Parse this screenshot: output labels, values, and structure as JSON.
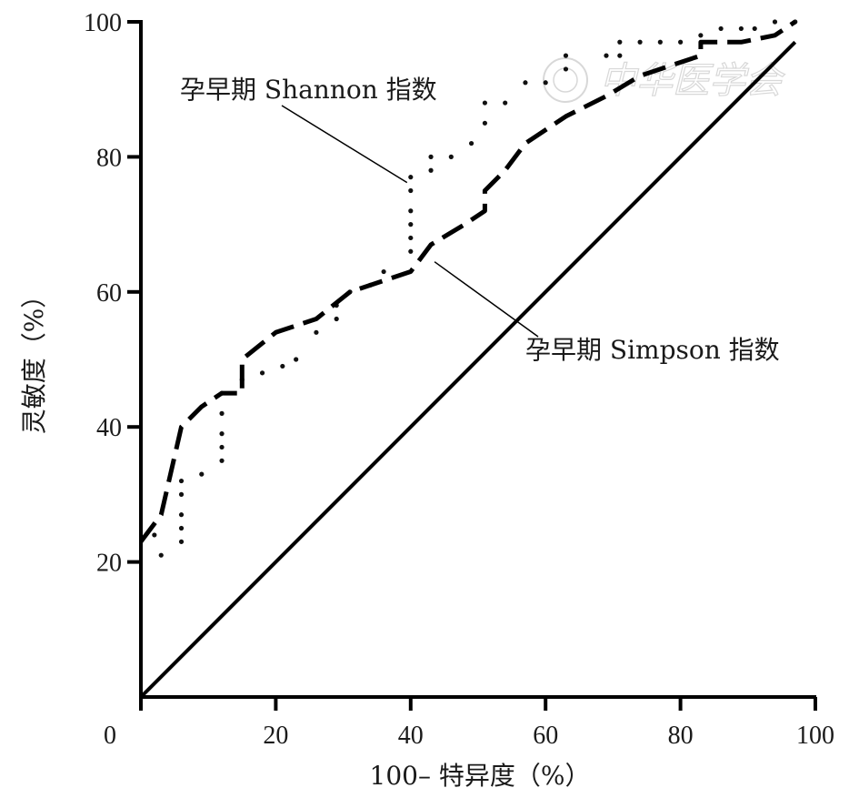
{
  "chart_data": {
    "type": "line",
    "title": "",
    "xlabel": "100– 特异度（%）",
    "ylabel": "灵敏度（%）",
    "xlim": [
      0,
      100
    ],
    "ylim": [
      0,
      100
    ],
    "x_ticks": [
      0,
      20,
      40,
      60,
      80,
      100
    ],
    "y_ticks": [
      20,
      40,
      60,
      80,
      100
    ],
    "x_tick_labels": [
      "0",
      "20",
      "40",
      "60",
      "80",
      "100"
    ],
    "y_tick_labels": [
      "20",
      "40",
      "60",
      "80",
      "100"
    ],
    "grid": false,
    "legend": "none",
    "series": [
      {
        "name": "孕早期 Shannon 指数",
        "style": "dotted",
        "points": [
          [
            2,
            24
          ],
          [
            3,
            21
          ],
          [
            6,
            23
          ],
          [
            6,
            25
          ],
          [
            6,
            27
          ],
          [
            6,
            30
          ],
          [
            6,
            32
          ],
          [
            9,
            33
          ],
          [
            12,
            35
          ],
          [
            12,
            37
          ],
          [
            12,
            39
          ],
          [
            12,
            42
          ],
          [
            12,
            45
          ],
          [
            15,
            47
          ],
          [
            18,
            48
          ],
          [
            21,
            49
          ],
          [
            23,
            50
          ],
          [
            26,
            54
          ],
          [
            29,
            56
          ],
          [
            29,
            58
          ],
          [
            31,
            60
          ],
          [
            34,
            61
          ],
          [
            36,
            63
          ],
          [
            40,
            66
          ],
          [
            40,
            68
          ],
          [
            40,
            70
          ],
          [
            40,
            72
          ],
          [
            40,
            75
          ],
          [
            40,
            77
          ],
          [
            43,
            78
          ],
          [
            43,
            80
          ],
          [
            46,
            80
          ],
          [
            49,
            82
          ],
          [
            51,
            85
          ],
          [
            51,
            88
          ],
          [
            54,
            88
          ],
          [
            57,
            91
          ],
          [
            60,
            91
          ],
          [
            63,
            93
          ],
          [
            63,
            95
          ],
          [
            69,
            95
          ],
          [
            71,
            95
          ],
          [
            71,
            97
          ],
          [
            74,
            97
          ],
          [
            77,
            97
          ],
          [
            80,
            97
          ],
          [
            83,
            98
          ],
          [
            86,
            99
          ],
          [
            89,
            99
          ],
          [
            91,
            99
          ],
          [
            94,
            100
          ],
          [
            97,
            100
          ]
        ]
      },
      {
        "name": "孕早期 Simpson 指数",
        "style": "dashed",
        "points": [
          [
            0,
            23
          ],
          [
            3,
            27
          ],
          [
            6,
            40
          ],
          [
            9,
            43
          ],
          [
            12,
            45
          ],
          [
            15,
            45
          ],
          [
            15,
            50
          ],
          [
            20,
            54
          ],
          [
            26,
            56
          ],
          [
            31,
            60
          ],
          [
            40,
            63
          ],
          [
            43,
            67
          ],
          [
            48,
            70
          ],
          [
            51,
            72
          ],
          [
            51,
            75
          ],
          [
            54,
            78
          ],
          [
            57,
            82
          ],
          [
            63,
            86
          ],
          [
            69,
            89
          ],
          [
            74,
            92
          ],
          [
            80,
            94
          ],
          [
            83,
            95
          ],
          [
            83,
            97
          ],
          [
            89,
            97
          ],
          [
            94,
            98
          ],
          [
            97,
            100
          ]
        ]
      },
      {
        "name": "",
        "style": "solid",
        "points": [
          [
            0,
            0
          ],
          [
            97,
            97
          ]
        ]
      }
    ],
    "annotations": [
      {
        "text": "孕早期 Shannon 指数",
        "target": [
          40,
          77
        ]
      },
      {
        "text": "孕早期 Simpson 指数",
        "target": [
          43,
          65
        ]
      }
    ]
  },
  "watermark": {
    "text": "中华医学会"
  }
}
